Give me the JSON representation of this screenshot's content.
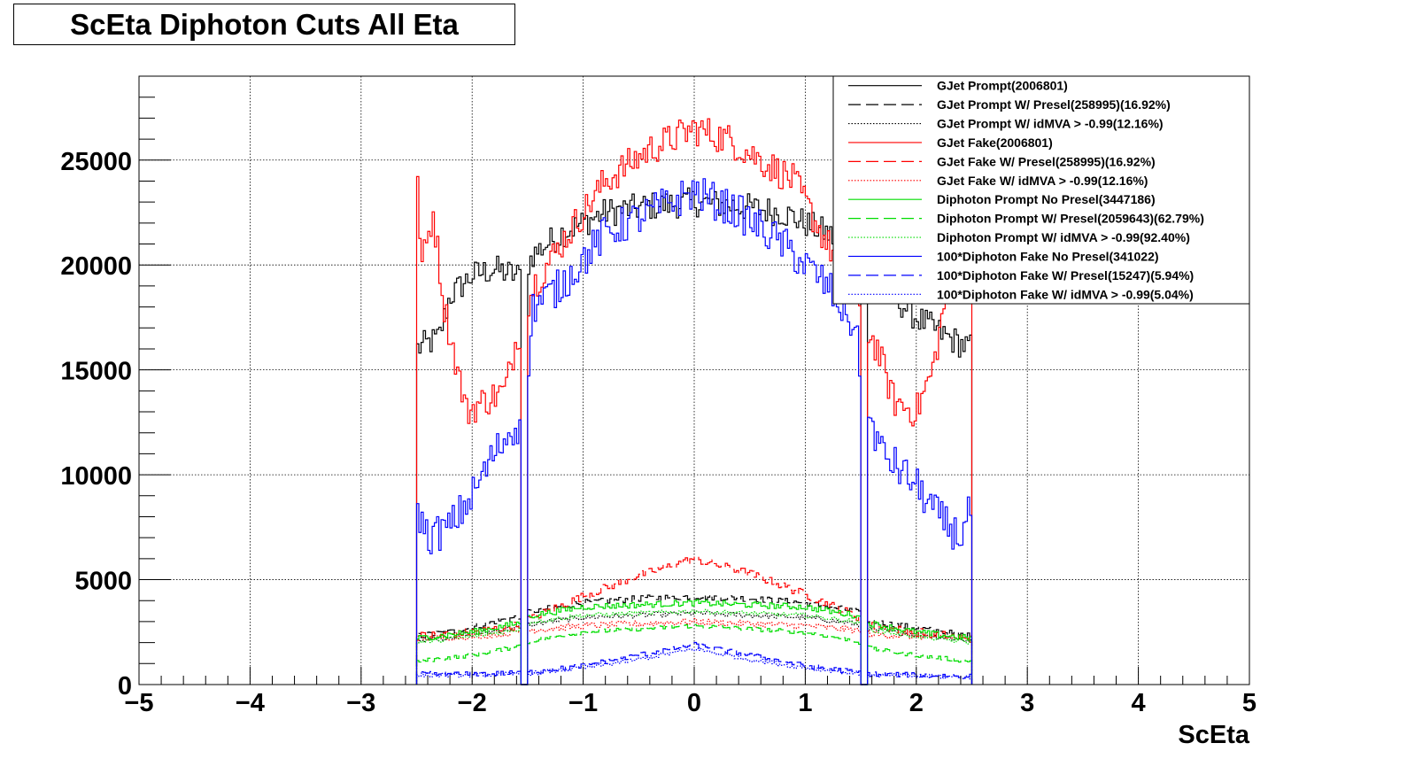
{
  "chart_data": {
    "type": "histogram",
    "title": "ScEta Diphoton Cuts All Eta",
    "xlabel": "ScEta",
    "ylabel": "",
    "xlim": [
      -5,
      5
    ],
    "ylim": [
      0,
      29000
    ],
    "x_ticks": [
      -5,
      -4,
      -3,
      -2,
      -1,
      0,
      1,
      2,
      3,
      4,
      5
    ],
    "x_tick_labels": [
      "−5",
      "−4",
      "−3",
      "−2",
      "−1",
      "0",
      "1",
      "2",
      "3",
      "4",
      "5"
    ],
    "y_ticks": [
      0,
      5000,
      10000,
      15000,
      20000,
      25000
    ],
    "y_tick_labels": [
      "0",
      "5000",
      "10000",
      "15000",
      "20000",
      "25000"
    ],
    "grid": true,
    "legend_position": "top-right",
    "bins": {
      "start": -2.5,
      "end": 2.5,
      "width": 0.02,
      "gap_low": -1.5,
      "gap_high": 1.5,
      "gap_zero": true
    },
    "series": [
      {
        "name": "GJet Prompt(2006801)",
        "color": "#000000",
        "dash": "solid",
        "profile": [
          [
            -2.5,
            16000
          ],
          [
            -2.3,
            16500
          ],
          [
            -2.2,
            18500
          ],
          [
            -2.0,
            19500
          ],
          [
            -1.8,
            19800
          ],
          [
            -1.6,
            19500
          ],
          [
            -1.55,
            19500
          ],
          [
            -1.45,
            20500
          ],
          [
            -1.2,
            21500
          ],
          [
            -0.8,
            22500
          ],
          [
            -0.4,
            22800
          ],
          [
            0.0,
            23000
          ],
          [
            0.4,
            22800
          ],
          [
            0.8,
            22500
          ],
          [
            1.2,
            21500
          ],
          [
            1.45,
            20500
          ],
          [
            1.55,
            19500
          ],
          [
            1.8,
            18500
          ],
          [
            2.0,
            17500
          ],
          [
            2.3,
            16500
          ],
          [
            2.5,
            16000
          ]
        ],
        "noise": 700
      },
      {
        "name": "GJet Prompt W/ Presel(258995)(16.92%)",
        "color": "#000000",
        "dash": "dashed",
        "profile": [
          [
            -2.5,
            2300
          ],
          [
            -2.2,
            2500
          ],
          [
            -2.0,
            2700
          ],
          [
            -1.8,
            3000
          ],
          [
            -1.6,
            3200
          ],
          [
            -1.45,
            3500
          ],
          [
            -1.0,
            3900
          ],
          [
            -0.5,
            4100
          ],
          [
            0.0,
            4200
          ],
          [
            0.5,
            4100
          ],
          [
            1.0,
            3900
          ],
          [
            1.45,
            3500
          ],
          [
            1.6,
            3000
          ],
          [
            2.0,
            2700
          ],
          [
            2.5,
            2300
          ]
        ],
        "noise": 150
      },
      {
        "name": "GJet Prompt W/ idMVA > -0.99(12.16%)",
        "color": "#000000",
        "dash": "dotted",
        "profile": [
          [
            -2.5,
            2100
          ],
          [
            -2.0,
            2400
          ],
          [
            -1.6,
            2700
          ],
          [
            -1.45,
            2900
          ],
          [
            -1.0,
            3200
          ],
          [
            0.0,
            3400
          ],
          [
            1.0,
            3200
          ],
          [
            1.45,
            2900
          ],
          [
            1.6,
            2600
          ],
          [
            2.0,
            2400
          ],
          [
            2.5,
            2100
          ]
        ],
        "noise": 120
      },
      {
        "name": "GJet Fake(2006801)",
        "color": "#ff0000",
        "dash": "solid",
        "profile": [
          [
            -2.5,
            24500
          ],
          [
            -2.45,
            20000
          ],
          [
            -2.35,
            22500
          ],
          [
            -2.25,
            18000
          ],
          [
            -2.15,
            15500
          ],
          [
            -2.05,
            13000
          ],
          [
            -1.9,
            13500
          ],
          [
            -1.7,
            14000
          ],
          [
            -1.6,
            16500
          ],
          [
            -1.55,
            17000
          ],
          [
            -1.45,
            19000
          ],
          [
            -1.2,
            21000
          ],
          [
            -0.8,
            24000
          ],
          [
            -0.4,
            25500
          ],
          [
            0.0,
            26500
          ],
          [
            0.3,
            26000
          ],
          [
            0.6,
            25000
          ],
          [
            0.9,
            24000
          ],
          [
            1.2,
            21000
          ],
          [
            1.45,
            19000
          ],
          [
            1.55,
            17000
          ],
          [
            1.65,
            16000
          ],
          [
            1.8,
            13500
          ],
          [
            2.0,
            13000
          ],
          [
            2.15,
            15000
          ],
          [
            2.25,
            18000
          ],
          [
            2.4,
            21000
          ],
          [
            2.5,
            22000
          ]
        ],
        "noise": 800
      },
      {
        "name": "GJet Fake W/ Presel(258995)(16.92%)",
        "color": "#ff0000",
        "dash": "dashed",
        "profile": [
          [
            -2.5,
            2300
          ],
          [
            -2.0,
            2500
          ],
          [
            -1.6,
            2800
          ],
          [
            -1.45,
            3200
          ],
          [
            -1.0,
            4200
          ],
          [
            -0.5,
            5200
          ],
          [
            0.0,
            6000
          ],
          [
            0.5,
            5300
          ],
          [
            1.0,
            4300
          ],
          [
            1.45,
            3300
          ],
          [
            1.6,
            2800
          ],
          [
            2.0,
            2500
          ],
          [
            2.5,
            2200
          ]
        ],
        "noise": 200
      },
      {
        "name": "GJet Fake W/ idMVA > -0.99(12.16%)",
        "color": "#ff0000",
        "dash": "dotted",
        "profile": [
          [
            -2.5,
            2200
          ],
          [
            -2.0,
            2300
          ],
          [
            -1.6,
            2500
          ],
          [
            -1.45,
            2600
          ],
          [
            -1.0,
            2800
          ],
          [
            0.0,
            3000
          ],
          [
            1.0,
            2800
          ],
          [
            1.45,
            2600
          ],
          [
            1.6,
            2400
          ],
          [
            2.0,
            2300
          ],
          [
            2.5,
            2200
          ]
        ],
        "noise": 150
      },
      {
        "name": "Diphoton Prompt No Presel(3447186)",
        "color": "#00dd00",
        "dash": "solid",
        "profile": [
          [
            -2.5,
            2200
          ],
          [
            -2.0,
            2500
          ],
          [
            -1.6,
            2900
          ],
          [
            -1.45,
            3300
          ],
          [
            -1.0,
            3700
          ],
          [
            0.0,
            3900
          ],
          [
            1.0,
            3700
          ],
          [
            1.45,
            3300
          ],
          [
            1.6,
            2900
          ],
          [
            2.0,
            2500
          ],
          [
            2.5,
            2200
          ]
        ],
        "noise": 150
      },
      {
        "name": "Diphoton Prompt W/ Presel(2059643)(62.79%)",
        "color": "#00dd00",
        "dash": "dashed",
        "profile": [
          [
            -2.5,
            1100
          ],
          [
            -2.0,
            1400
          ],
          [
            -1.6,
            1800
          ],
          [
            -1.45,
            2100
          ],
          [
            -1.0,
            2500
          ],
          [
            0.0,
            2800
          ],
          [
            1.0,
            2500
          ],
          [
            1.45,
            2100
          ],
          [
            1.6,
            1700
          ],
          [
            2.0,
            1400
          ],
          [
            2.5,
            1100
          ]
        ],
        "noise": 100
      },
      {
        "name": "Diphoton Prompt W/ idMVA > -0.99(92.40%)",
        "color": "#00dd00",
        "dash": "dotted",
        "profile": [
          [
            -2.5,
            2000
          ],
          [
            -2.0,
            2300
          ],
          [
            -1.6,
            2600
          ],
          [
            -1.45,
            3000
          ],
          [
            -1.0,
            3300
          ],
          [
            0.0,
            3500
          ],
          [
            1.0,
            3300
          ],
          [
            1.45,
            3000
          ],
          [
            1.6,
            2600
          ],
          [
            2.0,
            2300
          ],
          [
            2.5,
            2000
          ]
        ],
        "noise": 100
      },
      {
        "name": "100*Diphoton Fake No Presel(341022)",
        "color": "#0000ff",
        "dash": "solid",
        "profile": [
          [
            -2.5,
            8500
          ],
          [
            -2.4,
            7000
          ],
          [
            -2.2,
            7500
          ],
          [
            -2.0,
            9000
          ],
          [
            -1.8,
            11000
          ],
          [
            -1.6,
            12500
          ],
          [
            -1.55,
            11500
          ],
          [
            -1.45,
            18000
          ],
          [
            -1.2,
            19000
          ],
          [
            -0.8,
            21500
          ],
          [
            -0.4,
            22500
          ],
          [
            0.0,
            23500
          ],
          [
            0.4,
            22500
          ],
          [
            0.8,
            21000
          ],
          [
            1.2,
            19000
          ],
          [
            1.45,
            17000
          ],
          [
            1.55,
            13000
          ],
          [
            1.7,
            11000
          ],
          [
            2.0,
            9500
          ],
          [
            2.2,
            8000
          ],
          [
            2.4,
            7000
          ],
          [
            2.5,
            8500
          ]
        ],
        "noise": 900
      },
      {
        "name": "100*Diphoton Fake W/ Presel(15247)(5.94%)",
        "color": "#0000ff",
        "dash": "dashed",
        "profile": [
          [
            -2.5,
            500
          ],
          [
            -2.0,
            500
          ],
          [
            -1.6,
            550
          ],
          [
            -1.45,
            600
          ],
          [
            -1.0,
            900
          ],
          [
            -0.5,
            1400
          ],
          [
            0.0,
            1900
          ],
          [
            0.5,
            1400
          ],
          [
            1.0,
            900
          ],
          [
            1.45,
            600
          ],
          [
            1.6,
            500
          ],
          [
            2.0,
            450
          ],
          [
            2.5,
            400
          ]
        ],
        "noise": 120
      },
      {
        "name": "100*Diphoton Fake W/ idMVA > -0.99(5.04%)",
        "color": "#0000ff",
        "dash": "dotted",
        "profile": [
          [
            -2.5,
            450
          ],
          [
            -2.0,
            450
          ],
          [
            -1.6,
            500
          ],
          [
            -1.45,
            550
          ],
          [
            -1.0,
            800
          ],
          [
            -0.5,
            1200
          ],
          [
            0.0,
            1700
          ],
          [
            0.5,
            1200
          ],
          [
            1.0,
            800
          ],
          [
            1.45,
            550
          ],
          [
            1.6,
            450
          ],
          [
            2.0,
            400
          ],
          [
            2.5,
            350
          ]
        ],
        "noise": 100
      }
    ]
  }
}
